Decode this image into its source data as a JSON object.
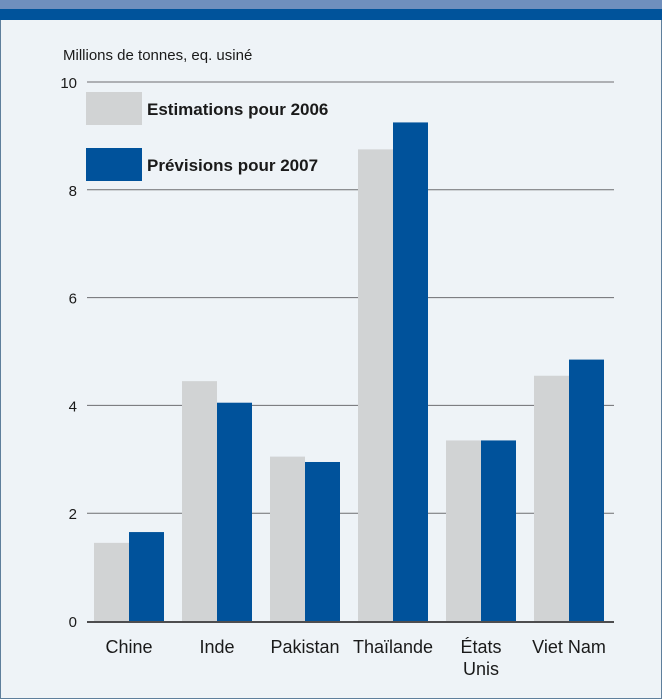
{
  "chart_data": {
    "type": "bar",
    "ylabel": "Millions de tonnes, eq. usiné",
    "categories": [
      "Chine",
      "Inde",
      "Pakistan",
      "Thaïlande",
      "États Unis",
      "Viet Nam"
    ],
    "category_lines": [
      [
        "Chine"
      ],
      [
        "Inde"
      ],
      [
        "Pakistan"
      ],
      [
        "Thaïlande"
      ],
      [
        "États",
        "Unis"
      ],
      [
        "Viet Nam"
      ]
    ],
    "series": [
      {
        "name": "Estimations pour 2006",
        "color": "#d1d3d4",
        "values": [
          1.45,
          4.45,
          3.05,
          8.75,
          3.35,
          4.55
        ]
      },
      {
        "name": "Prévisions pour 2007",
        "color": "#00529b",
        "values": [
          1.65,
          4.05,
          2.95,
          9.25,
          3.35,
          4.85
        ]
      }
    ],
    "ylim": [
      0,
      10
    ],
    "yticks": [
      0,
      2,
      4,
      6,
      8,
      10
    ],
    "grid": true,
    "legend_position": "top-left"
  }
}
